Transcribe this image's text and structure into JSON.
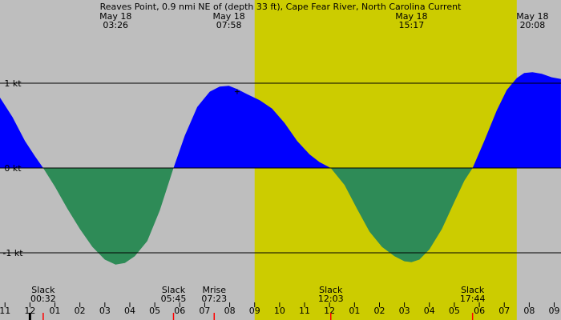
{
  "chart_data": {
    "type": "area",
    "title": "Reaves Point, 0.9 nmi NE of (depth 33 ft), Cape Fear River, North Carolina Current",
    "x_unit": "hours",
    "xlim": [
      10.8,
      33.27
    ],
    "ylim": [
      -1.4,
      1.15
    ],
    "yticks": [
      {
        "value": 1,
        "label": "1 kt"
      },
      {
        "value": 0,
        "label": "0 kt"
      },
      {
        "value": -1,
        "label": "-1 kt"
      }
    ],
    "daylight": {
      "start": 21.0,
      "end": 31.5
    },
    "top_events": [
      {
        "date": "May 18",
        "time": "03:26",
        "x": 15.43
      },
      {
        "date": "May 18",
        "time": "07:58",
        "x": 19.97
      },
      {
        "date": "May 18",
        "time": "15:17",
        "x": 27.28
      },
      {
        "date": "May 18",
        "time": "20:08",
        "x": 32.13
      }
    ],
    "bottom_events": [
      {
        "label": "Slack",
        "time": "00:32",
        "x": 12.53
      },
      {
        "label": "Slack",
        "time": "05:45",
        "x": 17.75
      },
      {
        "label": "Mrise",
        "time": "07:23",
        "x": 19.38
      },
      {
        "label": "Slack",
        "time": "12:03",
        "x": 24.05
      },
      {
        "label": "Slack",
        "time": "17:44",
        "x": 29.73
      }
    ],
    "hour_ticks": [
      {
        "label": "11",
        "x": 11
      },
      {
        "label": "12",
        "x": 12
      },
      {
        "label": "01",
        "x": 13
      },
      {
        "label": "02",
        "x": 14
      },
      {
        "label": "03",
        "x": 15
      },
      {
        "label": "04",
        "x": 16
      },
      {
        "label": "05",
        "x": 17
      },
      {
        "label": "06",
        "x": 18
      },
      {
        "label": "07",
        "x": 19
      },
      {
        "label": "08",
        "x": 20
      },
      {
        "label": "09",
        "x": 21
      },
      {
        "label": "10",
        "x": 22
      },
      {
        "label": "11",
        "x": 23
      },
      {
        "label": "12",
        "x": 24
      },
      {
        "label": "01",
        "x": 25
      },
      {
        "label": "02",
        "x": 26
      },
      {
        "label": "03",
        "x": 27
      },
      {
        "label": "04",
        "x": 28
      },
      {
        "label": "05",
        "x": 29
      },
      {
        "label": "06",
        "x": 30
      },
      {
        "label": "07",
        "x": 31
      },
      {
        "label": "08",
        "x": 32
      },
      {
        "label": "09",
        "x": 33
      }
    ],
    "red_markers": [
      12.53,
      17.75,
      19.38,
      24.05,
      29.73
    ],
    "current_mark": {
      "x": 20.3,
      "y": 0.9
    },
    "curve": {
      "x": [
        10.8,
        11.3,
        11.8,
        12.2,
        12.53,
        13.0,
        13.5,
        14.0,
        14.5,
        15.0,
        15.43,
        15.8,
        16.2,
        16.7,
        17.2,
        17.75,
        18.2,
        18.7,
        19.2,
        19.6,
        19.97,
        20.3,
        20.7,
        21.2,
        21.7,
        22.2,
        22.7,
        23.2,
        23.6,
        24.05,
        24.6,
        25.1,
        25.6,
        26.1,
        26.6,
        27.0,
        27.28,
        27.6,
        28.0,
        28.5,
        29.0,
        29.4,
        29.73,
        30.2,
        30.7,
        31.1,
        31.5,
        31.8,
        32.13,
        32.5,
        32.9,
        33.27
      ],
      "y": [
        0.83,
        0.6,
        0.32,
        0.14,
        0.0,
        -0.22,
        -0.48,
        -0.72,
        -0.93,
        -1.08,
        -1.14,
        -1.12,
        -1.04,
        -0.86,
        -0.5,
        0.0,
        0.38,
        0.72,
        0.9,
        0.96,
        0.97,
        0.93,
        0.87,
        0.8,
        0.7,
        0.53,
        0.32,
        0.16,
        0.07,
        0.0,
        -0.2,
        -0.48,
        -0.75,
        -0.93,
        -1.04,
        -1.1,
        -1.11,
        -1.08,
        -0.96,
        -0.72,
        -0.4,
        -0.15,
        0.0,
        0.32,
        0.68,
        0.92,
        1.06,
        1.12,
        1.13,
        1.11,
        1.07,
        1.05
      ]
    },
    "colors": {
      "background": "#bebebe",
      "daylight": "#cccc00",
      "flood": "#0000ff",
      "ebb": "#2e8b57",
      "axis": "#000000",
      "marker": "#ff0000"
    }
  }
}
